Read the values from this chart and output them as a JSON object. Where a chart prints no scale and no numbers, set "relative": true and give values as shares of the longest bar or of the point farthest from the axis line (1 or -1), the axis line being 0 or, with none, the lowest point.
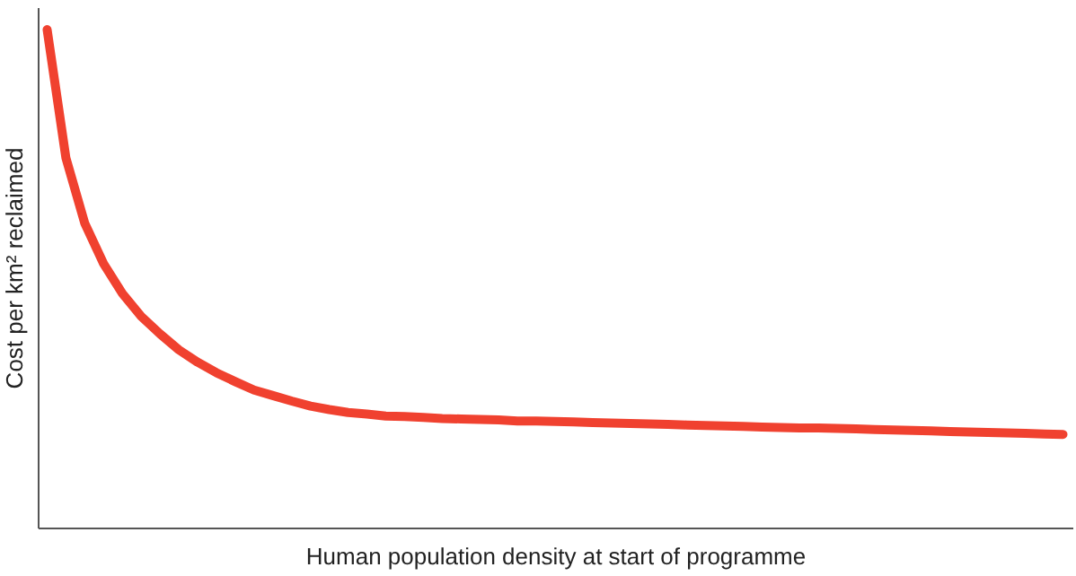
{
  "chart_data": {
    "type": "line",
    "relative": true,
    "xlabel": "Human population density at start of programme",
    "ylabel": "Cost per km² reclaimed",
    "grid": false,
    "marker": "none",
    "line_style": "solid",
    "categories": [
      null,
      null,
      null,
      null,
      null,
      null,
      null,
      null,
      null,
      null,
      null,
      null,
      null,
      null,
      null,
      null,
      null,
      null,
      null,
      null,
      null,
      null,
      null,
      null,
      null,
      null,
      null,
      null,
      null,
      null,
      null,
      null,
      null,
      null,
      null,
      null,
      null,
      null,
      null,
      null,
      null,
      null,
      null,
      null,
      null,
      null,
      null,
      null,
      null,
      null,
      null,
      null,
      null,
      null,
      null
    ],
    "series": [
      {
        "color": "#f0412f",
        "values": [
          1.0,
          0.742,
          0.611,
          0.53,
          0.47,
          0.424,
          0.389,
          0.357,
          0.332,
          0.311,
          0.293,
          0.276,
          0.265,
          0.254,
          0.244,
          0.237,
          0.231,
          0.228,
          0.224,
          0.223,
          0.221,
          0.219,
          0.218,
          0.217,
          0.216,
          0.214,
          0.214,
          0.213,
          0.212,
          0.211,
          0.21,
          0.209,
          0.208,
          0.207,
          0.206,
          0.205,
          0.204,
          0.203,
          0.202,
          0.201,
          0.2,
          0.2,
          0.199,
          0.198,
          0.197,
          0.196,
          0.195,
          0.194,
          0.193,
          0.192,
          0.191,
          0.19,
          0.189,
          0.188,
          0.187
        ]
      }
    ]
  }
}
